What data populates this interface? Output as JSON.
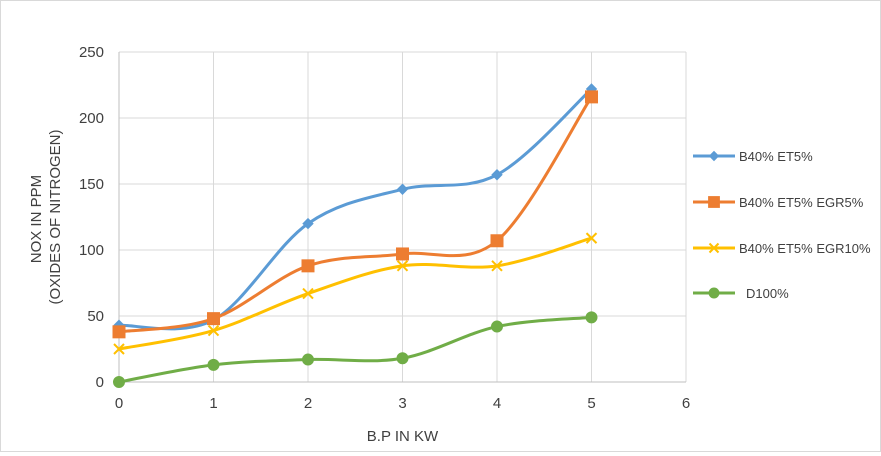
{
  "chart_data": {
    "type": "line",
    "smooth": true,
    "title": "",
    "xlabel": "B.P IN KW",
    "ylabel_lines": [
      "NOX IN PPM",
      "(OXIDES OF NITROGEN)"
    ],
    "xlim": [
      0,
      6
    ],
    "ylim": [
      0,
      250
    ],
    "x_ticks": [
      "0",
      "1",
      "2",
      "3",
      "4",
      "5",
      "6"
    ],
    "y_ticks": [
      "0",
      "50",
      "100",
      "150",
      "200",
      "250"
    ],
    "grid": "horizontal",
    "legend_position": "right",
    "x": [
      0,
      1,
      2,
      3,
      4,
      5
    ],
    "series": [
      {
        "name": "B40% ET5%",
        "color": "#5b9bd5",
        "marker": "diamond",
        "values": [
          43,
          47,
          120,
          146,
          157,
          222
        ]
      },
      {
        "name": "B40% ET5% EGR5%",
        "color": "#ed7d31",
        "marker": "square",
        "values": [
          38,
          48,
          88,
          97,
          107,
          216
        ]
      },
      {
        "name": "B40% ET5% EGR10%",
        "color": "#ffc000",
        "marker": "x",
        "values": [
          25,
          39,
          67,
          88,
          88,
          109
        ]
      },
      {
        "name": "D100%",
        "color": "#70ad47",
        "marker": "circle",
        "values": [
          0,
          13,
          17,
          18,
          42,
          49
        ]
      }
    ]
  }
}
